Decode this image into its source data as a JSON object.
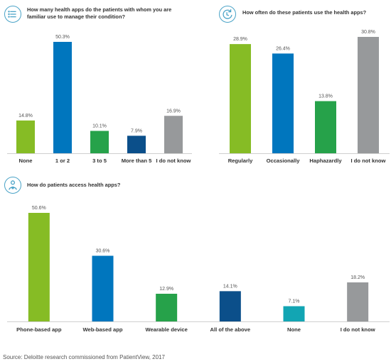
{
  "source": "Source: Deloitte research commissioned from PatientView, 2017",
  "colors": {
    "baseline": "#cfcfcf",
    "icon": "#4aa3c7"
  },
  "chart_data": [
    {
      "type": "bar",
      "title_lines": [
        "How many health apps do the patients with whom you are",
        "familiar use to manage their condition?"
      ],
      "icon": "list-icon",
      "categories": [
        "None",
        "1 or 2",
        "3 to 5",
        "More than 5",
        "I do not know"
      ],
      "values": [
        14.8,
        50.3,
        10.1,
        7.9,
        16.9
      ],
      "labels": [
        "14.8%",
        "50.3%",
        "10.1%",
        "7.9%",
        "16.9%"
      ],
      "colors": [
        "#86bc25",
        "#0076be",
        "#26a24a",
        "#0b4f8a",
        "#97999b"
      ],
      "ylim": [
        0,
        50.3
      ]
    },
    {
      "type": "bar",
      "title_lines": [
        "How often do these patients use the health apps?"
      ],
      "icon": "refresh-clock-icon",
      "categories": [
        "Regularly",
        "Occasionally",
        "Haphazardly",
        "I do not know"
      ],
      "values": [
        28.9,
        26.4,
        13.8,
        30.8
      ],
      "labels": [
        "28.9%",
        "26.4%",
        "13.8%",
        "30.8%"
      ],
      "colors": [
        "#86bc25",
        "#0076be",
        "#26a24a",
        "#97999b"
      ],
      "ylim": [
        0,
        30.8
      ]
    },
    {
      "type": "bar",
      "title_lines": [
        "How do patients access health apps?"
      ],
      "icon": "person-heart-icon",
      "categories": [
        "Phone-based app",
        "Web-based app",
        "Wearable device",
        "All of the above",
        "None",
        "I do not know"
      ],
      "values": [
        50.6,
        30.6,
        12.9,
        14.1,
        7.1,
        18.2
      ],
      "labels": [
        "50.6%",
        "30.6%",
        "12.9%",
        "14.1%",
        "7.1%",
        "18.2%"
      ],
      "colors": [
        "#86bc25",
        "#0076be",
        "#26a24a",
        "#0b4f8a",
        "#12a5b3",
        "#97999b"
      ],
      "ylim": [
        0,
        50.6
      ]
    }
  ]
}
